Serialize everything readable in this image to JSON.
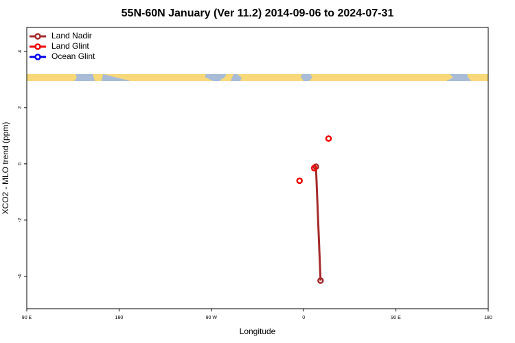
{
  "chart_data": {
    "type": "scatter",
    "title": "55N-60N January (Ver 11.2)   2014-09-06 to 2024-07-31",
    "x_label": "Longitude",
    "y_label": "XCO2 - MLO trend (ppm)",
    "xlim": [
      90,
      540
    ],
    "ylim": [
      -5.15,
      4.85
    ],
    "xticks": [
      {
        "value": 90,
        "label": "90 E"
      },
      {
        "value": 180,
        "label": "180"
      },
      {
        "value": 270,
        "label": "90 W"
      },
      {
        "value": 360,
        "label": "0"
      },
      {
        "value": 450,
        "label": "90 E"
      },
      {
        "value": 540,
        "label": "180"
      }
    ],
    "yticks": [
      -4,
      -2,
      0,
      2,
      4
    ],
    "legend": "top-left",
    "series": [
      {
        "name": "Land Nadir",
        "color": "#a52a2a",
        "line": true,
        "x": [
          372,
          376.5
        ],
        "values": [
          -0.1,
          -4.15
        ]
      },
      {
        "name": "Land Glint",
        "color": "#ee0000",
        "line": false,
        "x": [
          356,
          370.3,
          384.3
        ],
        "values": [
          -0.6,
          -0.15,
          0.9
        ]
      },
      {
        "name": "Ocean Glint",
        "color": "#0000ee",
        "line": true,
        "x": [],
        "values": []
      }
    ]
  }
}
